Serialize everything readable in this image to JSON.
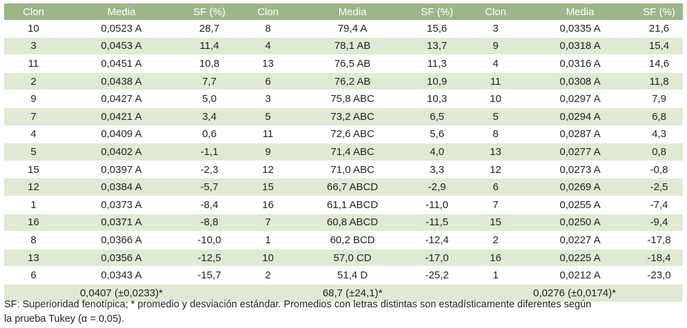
{
  "headers": [
    "Clon",
    "Media",
    "SF (%)",
    "Clon",
    "Media",
    "SF (%)",
    "Clon",
    "Media",
    "SF (%)"
  ],
  "rows": [
    [
      "10",
      "0,0523 A",
      "28,7",
      "8",
      "79,4 A",
      "15,6",
      "3",
      "0,0335 A",
      "21,6"
    ],
    [
      "3",
      "0,0453 A",
      "11,4",
      "4",
      "78,1 AB",
      "13,7",
      "9",
      "0,0318 A",
      "15,4"
    ],
    [
      "11",
      "0,0451 A",
      "10,8",
      "13",
      "76,5 AB",
      "11,3",
      "4",
      "0,0316 A",
      "14,6"
    ],
    [
      "2",
      "0,0438 A",
      "7,7",
      "6",
      "76,2 AB",
      "10,9",
      "11",
      "0,0308 A",
      "11,8"
    ],
    [
      "9",
      "0,0427 A",
      "5,0",
      "3",
      "75,8 ABC",
      "10,3",
      "10",
      "0,0297 A",
      "7,9"
    ],
    [
      "7",
      "0,0421 A",
      "3,4",
      "5",
      "73,2 ABC",
      "6,5",
      "5",
      "0,0294 A",
      "6,8"
    ],
    [
      "4",
      "0,0409 A",
      "0,6",
      "11",
      "72,6 ABC",
      "5,6",
      "8",
      "0,0287 A",
      "4,3"
    ],
    [
      "5",
      "0,0402 A",
      "-1,1",
      "9",
      "71,4 ABC",
      "4,0",
      "13",
      "0,0277 A",
      "0,8"
    ],
    [
      "15",
      "0,0397 A",
      "-2,3",
      "12",
      "71,0 ABC",
      "3,3",
      "12",
      "0,0273 A",
      "-0,8"
    ],
    [
      "12",
      "0,0384 A",
      "-5,7",
      "15",
      "66,7 ABCD",
      "-2,9",
      "6",
      "0,0269 A",
      "-2,5"
    ],
    [
      "1",
      "0,0373 A",
      "-8,4",
      "16",
      "61,1 ABCD",
      "-11,0",
      "7",
      "0,0255 A",
      "-7,4"
    ],
    [
      "16",
      "0,0371 A",
      "-8,8",
      "7",
      "60,8 ABCD",
      "-11,5",
      "15",
      "0,0250 A",
      "-9,4"
    ],
    [
      "8",
      "0,0366 A",
      "-10,0",
      "1",
      "60,2 BCD",
      "-12,4",
      "2",
      "0,0227 A",
      "-17,8"
    ],
    [
      "13",
      "0,0356 A",
      "-12,5",
      "10",
      "57,0 CD",
      "-17,0",
      "16",
      "0,0225 A",
      "-18,4"
    ],
    [
      "6",
      "0,0343 A",
      "-15,7",
      "2",
      "51,4 D",
      "-25,2",
      "1",
      "0,0212 A",
      "-23,0"
    ]
  ],
  "footer": [
    "0,0407 (±0,0233)*",
    "68,7 (±24,1)*",
    "0,0276 (±0,0174)*"
  ],
  "caption_line1": "SF: Superioridad fenotípica; * promedio y desviación estándar. Promedios con letras distintas son estadísticamente diferentes según",
  "caption_line2": "la prueba Tukey (α = 0,05).",
  "colors": {
    "header_bg": "#9cb68a",
    "stripe_bg": "#dfe9d4",
    "text": "#222222"
  }
}
